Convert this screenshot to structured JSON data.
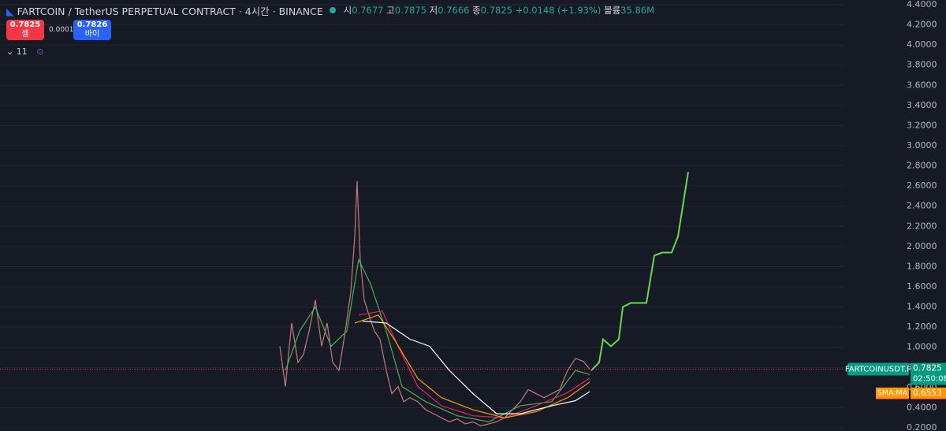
{
  "chart_data": {
    "type": "line",
    "title": "FARTCOIN / TetherUS PERPETUAL CONTRACT · 4시간 · BINANCE",
    "ohlc": [
      {
        "label": "시",
        "value": "0.7677"
      },
      {
        "label": "고",
        "value": "0.7875"
      },
      {
        "label": "저",
        "value": "0.7666"
      },
      {
        "label": "종",
        "value": "0.7825"
      }
    ],
    "change": "+0.0148 (+1.93%)",
    "volume": {
      "label": "볼륨",
      "value": "35.86M"
    },
    "sell": {
      "price": "0.7825",
      "label": "셀"
    },
    "spread": "0.0001",
    "buy": {
      "price": "0.7826",
      "label": "바이"
    },
    "indicator_count": "11",
    "ylim": [
      0.169,
      4.447
    ],
    "xlim": [
      -355,
      715
    ],
    "yticks": [
      {
        "value": 0.2,
        "label": "0.2000"
      },
      {
        "value": 0.4,
        "label": "0.4000"
      },
      {
        "value": 0.6,
        "label": "0.6000"
      },
      {
        "value": 0.8,
        "label": "0.8000"
      },
      {
        "value": 1.0,
        "label": "1.0000"
      },
      {
        "value": 1.2,
        "label": "1.2000"
      },
      {
        "value": 1.4,
        "label": "1.4000"
      },
      {
        "value": 1.6,
        "label": "1.6000"
      },
      {
        "value": 1.8,
        "label": "1.8000"
      },
      {
        "value": 2.0,
        "label": "2.0000"
      },
      {
        "value": 2.2,
        "label": "2.2000"
      },
      {
        "value": 2.4,
        "label": "2.4000"
      },
      {
        "value": 2.6,
        "label": "2.6000"
      },
      {
        "value": 2.8,
        "label": "2.8000"
      },
      {
        "value": 3.0,
        "label": "3.0000"
      },
      {
        "value": 3.2,
        "label": "3.2000"
      },
      {
        "value": 3.4,
        "label": "3.4000"
      },
      {
        "value": 3.6,
        "label": "3.6000"
      },
      {
        "value": 3.8,
        "label": "3.8000"
      },
      {
        "value": 4.0,
        "label": "4.0000"
      },
      {
        "value": 4.2,
        "label": "4.2000"
      },
      {
        "value": 4.4,
        "label": "4.4000"
      }
    ],
    "grid": true,
    "series": [
      {
        "color": "#c9787a",
        "x": [
          0,
          7,
          15,
          23,
          30,
          37,
          45,
          53,
          60,
          67,
          75,
          83,
          90,
          95,
          98,
          102,
          107,
          113,
          120,
          127,
          135,
          142,
          150,
          157,
          165,
          175,
          185,
          195,
          205,
          215,
          225,
          235,
          245,
          255,
          265,
          275,
          285,
          295,
          305,
          315,
          325,
          335,
          345,
          355,
          365,
          375,
          385,
          393
        ],
        "values": [
          1.01,
          0.61,
          1.24,
          0.85,
          0.93,
          1.16,
          1.47,
          1.01,
          1.24,
          0.85,
          0.77,
          1.16,
          1.55,
          2.1,
          2.65,
          1.87,
          1.47,
          1.32,
          1.16,
          1.08,
          0.77,
          0.54,
          0.61,
          0.46,
          0.5,
          0.46,
          0.38,
          0.34,
          0.3,
          0.26,
          0.29,
          0.24,
          0.26,
          0.22,
          0.24,
          0.26,
          0.3,
          0.38,
          0.46,
          0.58,
          0.54,
          0.5,
          0.54,
          0.58,
          0.77,
          0.89,
          0.86,
          0.7825
        ]
      },
      {
        "color": "#4caf50",
        "x": [
          7,
          25,
          45,
          65,
          85,
          100,
          115,
          135,
          155,
          185,
          225,
          265,
          305,
          345,
          375,
          393
        ],
        "values": [
          0.77,
          1.16,
          1.4,
          1.01,
          1.16,
          1.87,
          1.63,
          1.16,
          0.61,
          0.46,
          0.32,
          0.26,
          0.42,
          0.46,
          0.77,
          0.73
        ]
      },
      {
        "color": "#e91e63",
        "x": [
          100,
          130,
          150,
          175,
          205,
          245,
          285,
          325,
          365,
          393
        ],
        "values": [
          1.32,
          1.36,
          1.01,
          0.61,
          0.42,
          0.32,
          0.3,
          0.42,
          0.55,
          0.6943
        ]
      },
      {
        "color": "#ff9800",
        "x": [
          95,
          125,
          145,
          175,
          205,
          245,
          285,
          325,
          365,
          393
        ],
        "values": [
          1.24,
          1.32,
          1.08,
          0.69,
          0.5,
          0.38,
          0.3,
          0.36,
          0.5,
          0.6553
        ]
      },
      {
        "color": "#ffffff",
        "x": [
          105,
          135,
          165,
          190,
          215,
          245,
          275,
          305,
          345,
          375,
          393
        ],
        "values": [
          1.26,
          1.24,
          1.08,
          1.01,
          0.77,
          0.54,
          0.34,
          0.34,
          0.42,
          0.47,
          0.56
        ]
      },
      {
        "color": "#66d94e",
        "x": [
          395,
          405,
          410,
          420,
          430,
          435,
          445,
          465,
          475,
          485,
          497,
          505,
          518
        ],
        "values": [
          0.77,
          0.85,
          1.08,
          1.01,
          1.08,
          1.4,
          1.44,
          1.44,
          1.91,
          1.94,
          1.94,
          2.1,
          2.74
        ]
      }
    ],
    "last_price": {
      "symbol": "FARTCOINUSDT.P",
      "value": 0.7825,
      "countdown": "02:50:08",
      "color": "#089981"
    },
    "sma_labels": [
      {
        "name": "SMA:MA",
        "value": 0.6943,
        "color": "#e91e63"
      },
      {
        "name": "SMA:MA",
        "value": 0.6553,
        "color": "#ff9800"
      }
    ]
  }
}
